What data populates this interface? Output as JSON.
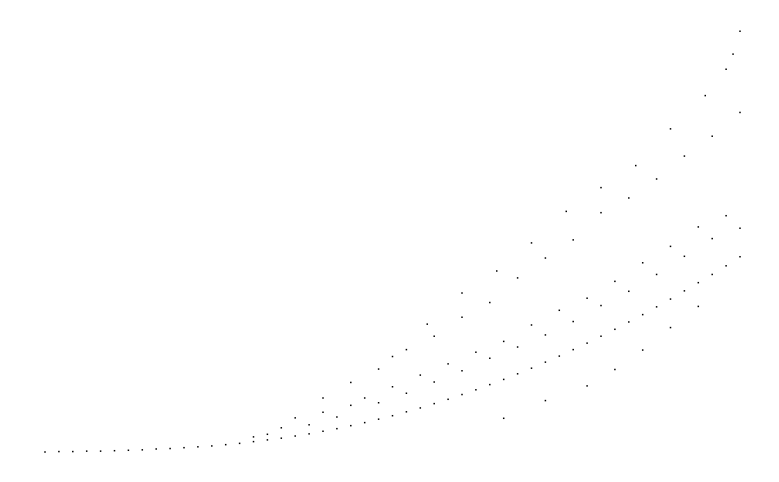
{
  "chart_data": {
    "type": "scatter",
    "title": "",
    "xlabel": "",
    "ylabel": "",
    "grid": false,
    "legend": "none",
    "axes_visible": false,
    "marker_color": "#000000",
    "background_color": "#ffffff",
    "xlim": [
      0,
      100
    ],
    "ylim": [
      0,
      100
    ],
    "series": [
      {
        "points": [
          [
            0,
            0
          ],
          [
            2,
            0.1
          ],
          [
            4,
            0.1
          ],
          [
            6,
            0.2
          ],
          [
            8,
            0.2
          ],
          [
            10,
            0.3
          ],
          [
            12,
            0.4
          ],
          [
            14,
            0.5
          ],
          [
            16,
            0.7
          ],
          [
            18,
            0.8
          ],
          [
            20,
            1.0
          ],
          [
            22,
            1.2
          ],
          [
            24,
            1.4
          ],
          [
            26,
            1.7
          ],
          [
            28,
            2.0
          ],
          [
            30,
            2.4
          ],
          [
            32,
            2.8
          ],
          [
            34,
            3.2
          ],
          [
            36,
            3.7
          ],
          [
            38,
            4.2
          ],
          [
            40,
            4.8
          ],
          [
            42,
            5.4
          ],
          [
            44,
            6.1
          ],
          [
            46,
            6.8
          ],
          [
            48,
            7.6
          ],
          [
            50,
            8.4
          ],
          [
            52,
            9.3
          ],
          [
            54,
            10.2
          ],
          [
            56,
            11.2
          ],
          [
            58,
            12.2
          ],
          [
            60,
            13.3
          ],
          [
            62,
            14.4
          ],
          [
            64,
            15.6
          ],
          [
            66,
            16.8
          ],
          [
            68,
            18.1
          ],
          [
            70,
            19.4
          ],
          [
            72,
            20.8
          ],
          [
            74,
            22.2
          ],
          [
            76,
            23.7
          ],
          [
            78,
            25.2
          ],
          [
            80,
            26.8
          ],
          [
            82,
            28.4
          ],
          [
            84,
            30.1
          ],
          [
            86,
            31.8
          ],
          [
            88,
            33.6
          ],
          [
            90,
            35.4
          ],
          [
            92,
            37.3
          ],
          [
            94,
            39.2
          ],
          [
            96,
            41.1
          ],
          [
            98,
            43.1
          ],
          [
            100,
            45.2
          ],
          [
            30,
            3.5
          ],
          [
            32,
            4.1
          ],
          [
            34,
            5.6
          ],
          [
            36,
            7.9
          ],
          [
            38,
            6.3
          ],
          [
            40,
            9.2
          ],
          [
            42,
            8.1
          ],
          [
            44,
            10.8
          ],
          [
            46,
            12.5
          ],
          [
            48,
            11.4
          ],
          [
            50,
            15.1
          ],
          [
            52,
            13.6
          ],
          [
            54,
            17.8
          ],
          [
            56,
            16.2
          ],
          [
            58,
            20.4
          ],
          [
            60,
            18.8
          ],
          [
            62,
            23.1
          ],
          [
            64,
            21.7
          ],
          [
            66,
            25.6
          ],
          [
            68,
            24.3
          ],
          [
            70,
            29.4
          ],
          [
            72,
            27.1
          ],
          [
            74,
            32.8
          ],
          [
            76,
            30.2
          ],
          [
            78,
            35.6
          ],
          [
            80,
            33.9
          ],
          [
            82,
            39.5
          ],
          [
            84,
            37.2
          ],
          [
            86,
            43.8
          ],
          [
            88,
            41.1
          ],
          [
            90,
            47.6
          ],
          [
            92,
            45.3
          ],
          [
            94,
            52.1
          ],
          [
            96,
            49.4
          ],
          [
            98,
            54.7
          ],
          [
            100,
            51.8
          ],
          [
            40,
            12.5
          ],
          [
            44,
            16.1
          ],
          [
            48,
            19.2
          ],
          [
            52,
            23.7
          ],
          [
            56,
            26.8
          ],
          [
            60,
            31.2
          ],
          [
            64,
            34.6
          ],
          [
            68,
            40.3
          ],
          [
            72,
            44.9
          ],
          [
            76,
            49.1
          ],
          [
            80,
            55.4
          ],
          [
            84,
            58.8
          ],
          [
            88,
            63.2
          ],
          [
            92,
            68.5
          ],
          [
            96,
            73.1
          ],
          [
            100,
            78.6
          ],
          [
            50,
            22.1
          ],
          [
            55,
            29.6
          ],
          [
            60,
            36.8
          ],
          [
            65,
            41.9
          ],
          [
            70,
            48.4
          ],
          [
            75,
            55.7
          ],
          [
            80,
            61.2
          ],
          [
            85,
            66.3
          ],
          [
            90,
            74.8
          ],
          [
            95,
            82.5
          ],
          [
            98,
            88.6
          ],
          [
            99,
            92.1
          ],
          [
            100,
            97.4
          ],
          [
            66,
            7.8
          ],
          [
            72,
            11.9
          ],
          [
            78,
            15.3
          ],
          [
            82,
            19.1
          ],
          [
            86,
            23.6
          ],
          [
            90,
            28.8
          ],
          [
            94,
            33.7
          ]
        ]
      }
    ]
  }
}
